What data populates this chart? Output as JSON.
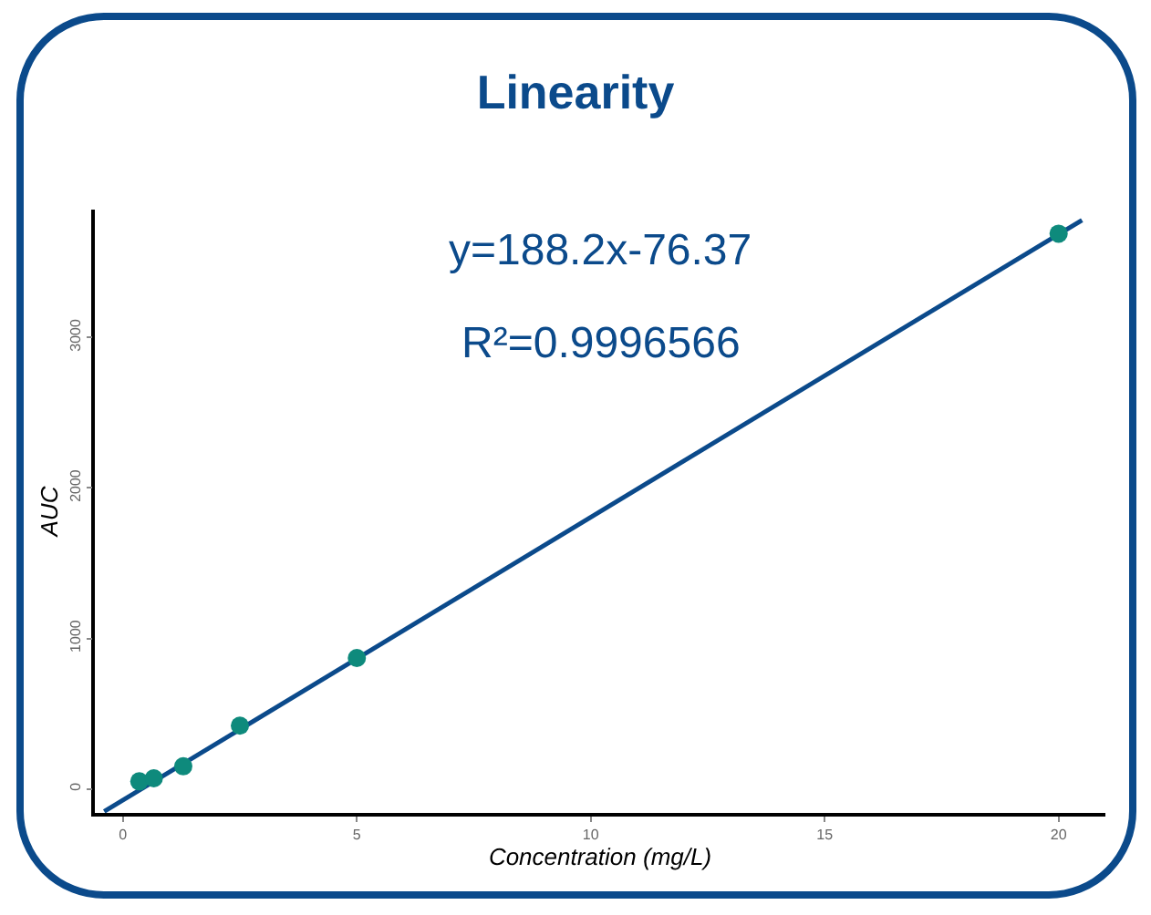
{
  "chart_data": {
    "type": "scatter",
    "title": "Linearity",
    "xlabel": "Concentration (mg/L)",
    "ylabel": "AUC",
    "annotations": [
      "y=188.2x-76.37",
      "R²=0.9996566"
    ],
    "x": [
      0.35,
      0.66,
      1.29,
      2.5,
      5,
      20
    ],
    "series": [
      {
        "color": "#0e8a7c",
        "values": [
          50,
          70,
          150,
          420,
          870,
          3690
        ],
        "marker": "circle"
      },
      {
        "type": "line",
        "color": "#0b4a8b",
        "x": [
          -0.4,
          20.5
        ],
        "values": [
          -150,
          3780
        ],
        "marker": "none",
        "line_style": "solid"
      }
    ],
    "xlim": [
      -0.6,
      21
    ],
    "xticks": [
      0,
      5,
      10,
      15,
      20
    ],
    "ylim": [
      -160,
      3850
    ],
    "yticks": [
      0,
      1000,
      2000,
      3000
    ],
    "grid": false
  }
}
